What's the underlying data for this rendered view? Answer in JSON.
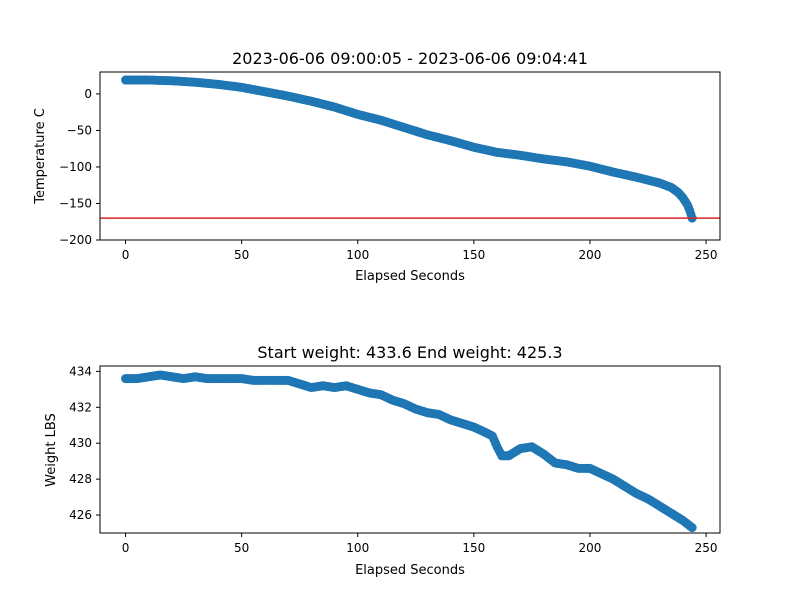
{
  "chart_data": [
    {
      "type": "scatter",
      "title": "2023-06-06 09:00:05 - 2023-06-06 09:04:41",
      "xlabel": "Elapsed Seconds",
      "ylabel": "Temperature C",
      "xlim": [
        -11,
        256
      ],
      "ylim": [
        -200,
        30
      ],
      "xticks": [
        0,
        50,
        100,
        150,
        200,
        250
      ],
      "yticks": [
        0,
        -50,
        -100,
        -150,
        -200
      ],
      "ytick_labels": [
        "0",
        "−50",
        "−100",
        "−150",
        "−200"
      ],
      "grid": false,
      "reference_line": {
        "y": -170,
        "color": "#d62728"
      },
      "marker_color": "#1f77b4",
      "x": [
        0,
        10,
        20,
        30,
        40,
        50,
        60,
        70,
        80,
        90,
        100,
        110,
        120,
        130,
        140,
        150,
        160,
        170,
        180,
        190,
        200,
        210,
        220,
        230,
        235,
        238,
        240,
        242,
        243,
        244
      ],
      "y": [
        19,
        19,
        18,
        16,
        13,
        9,
        3,
        -3,
        -10,
        -18,
        -28,
        -36,
        -46,
        -56,
        -64,
        -73,
        -80,
        -84,
        -89,
        -93,
        -99,
        -107,
        -114,
        -122,
        -128,
        -135,
        -142,
        -152,
        -160,
        -170
      ]
    },
    {
      "type": "scatter",
      "title": "Start weight: 433.6 End weight: 425.3",
      "xlabel": "Elapsed Seconds",
      "ylabel": "Weight LBS",
      "xlim": [
        -11,
        256
      ],
      "ylim": [
        425,
        434.3
      ],
      "xticks": [
        0,
        50,
        100,
        150,
        200,
        250
      ],
      "yticks": [
        426,
        428,
        430,
        432,
        434
      ],
      "grid": false,
      "marker_color": "#1f77b4",
      "x": [
        0,
        5,
        10,
        15,
        20,
        25,
        30,
        35,
        40,
        45,
        50,
        55,
        60,
        65,
        70,
        75,
        80,
        85,
        90,
        95,
        100,
        105,
        110,
        115,
        120,
        125,
        130,
        135,
        140,
        145,
        150,
        155,
        158,
        160,
        162,
        165,
        170,
        175,
        180,
        185,
        190,
        195,
        200,
        205,
        210,
        215,
        220,
        225,
        230,
        235,
        240,
        244
      ],
      "y": [
        433.6,
        433.6,
        433.7,
        433.8,
        433.7,
        433.6,
        433.7,
        433.6,
        433.6,
        433.6,
        433.6,
        433.5,
        433.5,
        433.5,
        433.5,
        433.3,
        433.1,
        433.2,
        433.1,
        433.2,
        433.0,
        432.8,
        432.7,
        432.4,
        432.2,
        431.9,
        431.7,
        431.6,
        431.3,
        431.1,
        430.9,
        430.6,
        430.4,
        429.8,
        429.3,
        429.3,
        429.7,
        429.8,
        429.4,
        428.9,
        428.8,
        428.6,
        428.6,
        428.3,
        428.0,
        427.6,
        427.2,
        426.9,
        426.5,
        426.1,
        425.7,
        425.3
      ]
    }
  ]
}
